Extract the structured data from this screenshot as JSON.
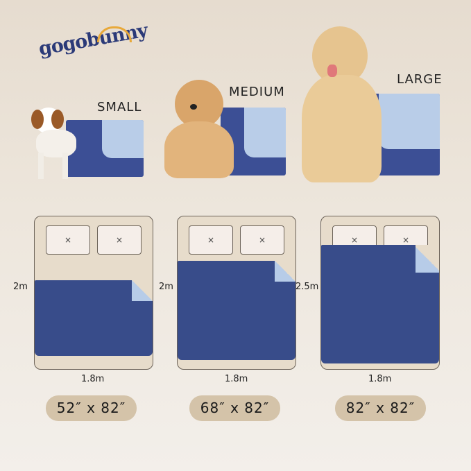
{
  "brand": {
    "logo_text": "gogobunny"
  },
  "sizes": [
    {
      "label": "SMALL",
      "width_m": "1.8m",
      "length_m": "2m",
      "dimensions": "52″ x 82″"
    },
    {
      "label": "MEDIUM",
      "width_m": "1.8m",
      "length_m": "2m",
      "dimensions": "68″ x 82″"
    },
    {
      "label": "LARGE",
      "width_m": "1.8m",
      "length_m": "2.5m",
      "dimensions": "82″ x 82″"
    }
  ],
  "pillow_mark": "×",
  "colors": {
    "pad_dark": "#384c8a",
    "pad_light": "#b7cce8",
    "bed": "#e7dccb",
    "pill": "#d4c3a9"
  }
}
